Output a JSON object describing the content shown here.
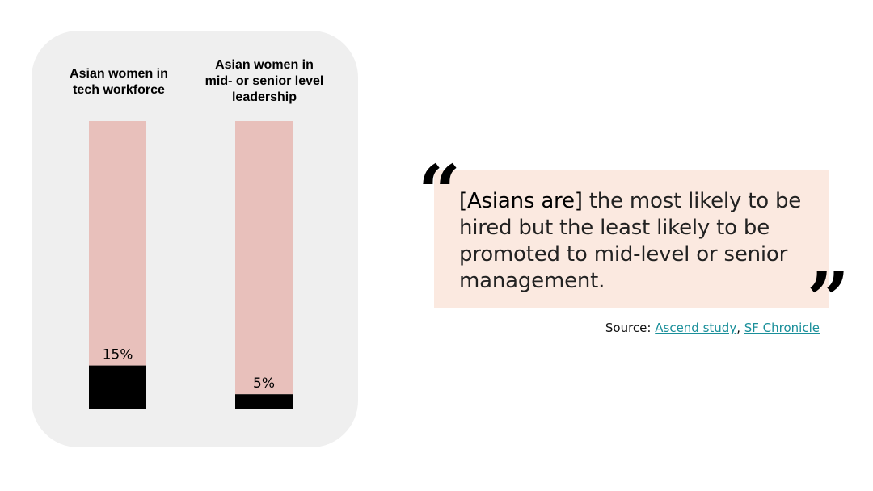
{
  "chart_data": {
    "type": "bar",
    "categories": [
      "Asian women in tech workforce",
      "Asian women in mid- or senior level leadership"
    ],
    "values": [
      15,
      5
    ],
    "data_labels": [
      "15%",
      "5%"
    ],
    "ylim": [
      0,
      100
    ],
    "colors": {
      "value_fill": "#000000",
      "remainder_fill": "#e8c0bb",
      "panel_background": "#efefef"
    }
  },
  "quote": {
    "open_mark": "“",
    "close_mark": "”",
    "emphasis": "[Asians are]",
    "text": " the most likely to be hired but the least likely to be promoted to mid-level or senior management.",
    "background_color": "#fbe9e0"
  },
  "source": {
    "label": "Source:",
    "links": [
      "Ascend study",
      "SF Chronicle"
    ],
    "separator": ",",
    "link_color": "#1a8f9a"
  }
}
